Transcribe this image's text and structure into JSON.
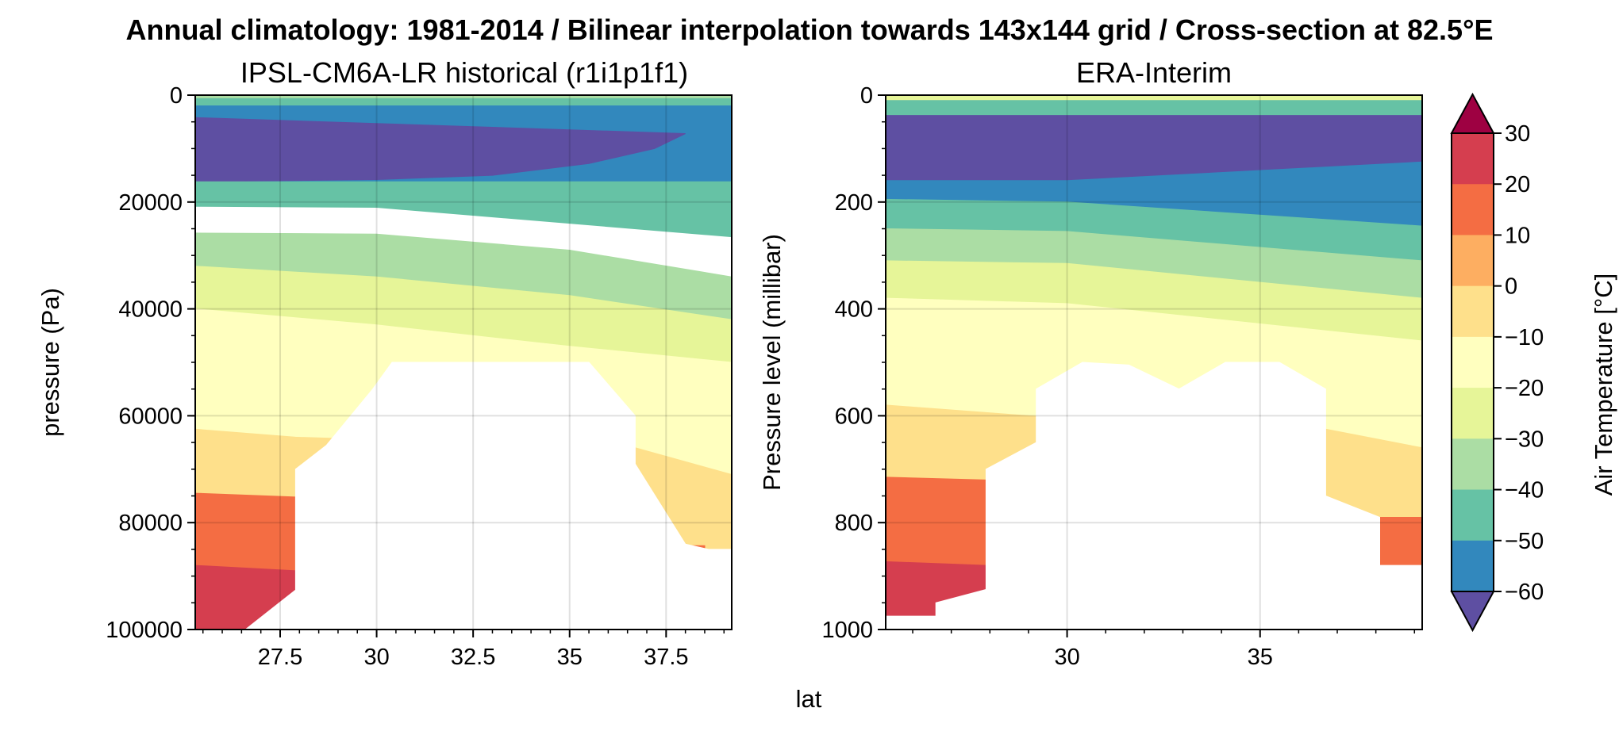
{
  "figure": {
    "suptitle": "Annual climatology: 1981-2014 / Bilinear interpolation towards 143x144 grid / Cross-section at 82.5°E",
    "shared_xlabel": "lat"
  },
  "colorbar": {
    "label": "Air Temperature [°C]",
    "tick_labels": [
      "30",
      "20",
      "10",
      "0",
      "−10",
      "−20",
      "−30",
      "−40",
      "−50",
      "−60"
    ],
    "bands_top_to_bottom": [
      "#d53e4f",
      "#f46d43",
      "#fdae61",
      "#fee08b",
      "#ffffbf",
      "#e6f598",
      "#abdda4",
      "#66c2a5",
      "#3288bd"
    ],
    "extend_high_color": "#9e0142",
    "extend_low_color": "#5e4fa2"
  },
  "chart_data": [
    {
      "type": "heatmap",
      "subtype": "filled-contour",
      "title": "IPSL-CM6A-LR historical (r1i1p1f1)",
      "ylabel": "pressure (Pa)",
      "xlabel": "lat",
      "xlim": [
        25.3,
        39.2
      ],
      "ylim": [
        100000,
        0
      ],
      "x_ticks": [
        27.5,
        30,
        32.5,
        35,
        37.5
      ],
      "x_tick_labels": [
        "27.5",
        "30",
        "32.5",
        "35",
        "37.5"
      ],
      "y_ticks": [
        0,
        20000,
        40000,
        60000,
        80000,
        100000
      ],
      "y_tick_labels": [
        "0",
        "20000",
        "40000",
        "60000",
        "80000",
        "100000"
      ],
      "levels": [
        -60,
        -50,
        -40,
        -30,
        -20,
        -10,
        0,
        10,
        20,
        30
      ],
      "grid": true,
      "filled_regions": [
        {
          "band": "surface layer -50 to -40 °C",
          "color": "#66c2a5",
          "points": [
            [
              25.3,
              0
            ],
            [
              39.2,
              0
            ],
            [
              39.2,
              2000
            ],
            [
              25.3,
              2000
            ]
          ]
        },
        {
          "band": "-30 to -20 °C",
          "color": "#abdda4",
          "points": [
            [
              25.3,
              0
            ],
            [
              39.2,
              0
            ],
            [
              39.2,
              500
            ],
            [
              25.3,
              500
            ]
          ]
        },
        {
          "band": "-60 to -50 °C",
          "color": "#3288bd",
          "points": [
            [
              25.3,
              2000
            ],
            [
              39.2,
              2000
            ],
            [
              39.2,
              16200
            ],
            [
              25.3,
              16200
            ]
          ]
        },
        {
          "band": "below -60 °C",
          "color": "#5e4fa2",
          "points": [
            [
              25.3,
              4200
            ],
            [
              38.0,
              7200
            ],
            [
              37.2,
              10000
            ],
            [
              35.5,
              12800
            ],
            [
              33.0,
              15000
            ],
            [
              30.0,
              15800
            ],
            [
              25.3,
              16200
            ]
          ]
        },
        {
          "band": "-50 to -40 °C",
          "color": "#66c2a5",
          "points": [
            [
              25.3,
              16200
            ],
            [
              39.2,
              16200
            ],
            [
              39.2,
              26500
            ],
            [
              30.0,
              21000
            ],
            [
              25.3,
              20800
            ]
          ]
        },
        {
          "band": "-40 to -30 °C",
          "color": "#abdda4",
          "points": [
            [
              25.3,
              25800
            ],
            [
              30.0,
              26000
            ],
            [
              35.0,
              29000
            ],
            [
              39.2,
              34000
            ],
            [
              39.2,
              42000
            ],
            [
              25.3,
              32000
            ]
          ]
        },
        {
          "band": "-30 to -20 °C",
          "color": "#e6f598",
          "points": [
            [
              25.3,
              32000
            ],
            [
              30.0,
              34000
            ],
            [
              35.0,
              37500
            ],
            [
              39.2,
              42000
            ],
            [
              39.2,
              50000
            ],
            [
              25.3,
              40000
            ]
          ]
        },
        {
          "band": "-20 to -10 °C",
          "color": "#ffffbf",
          "points": [
            [
              25.3,
              40000
            ],
            [
              30.0,
              43000
            ],
            [
              35.0,
              47000
            ],
            [
              39.2,
              50000
            ],
            [
              39.2,
              100000
            ],
            [
              25.3,
              100000
            ]
          ]
        },
        {
          "band": "-10 to 0 °C",
          "color": "#ffffbf",
          "points": [
            [
              25.3,
              50000
            ],
            [
              30.0,
              52000
            ],
            [
              35.0,
              55000
            ],
            [
              39.2,
              60000
            ],
            [
              39.2,
              100000
            ],
            [
              25.3,
              100000
            ]
          ]
        },
        {
          "band": "0 to 10 °C",
          "color": "#fee08b",
          "points": [
            [
              25.3,
              62500
            ],
            [
              27.9,
              64000
            ],
            [
              36.7,
              66000
            ],
            [
              39.2,
              71000
            ],
            [
              39.2,
              100000
            ],
            [
              25.3,
              100000
            ]
          ]
        },
        {
          "band": "10 to 20 °C",
          "color": "#f46d43",
          "points": [
            [
              25.3,
              74500
            ],
            [
              27.9,
              75200
            ],
            [
              27.9,
              100000
            ],
            [
              25.3,
              100000
            ]
          ]
        },
        {
          "band": "10 to 20 °C",
          "color": "#f46d43",
          "points": [
            [
              37.9,
              84300
            ],
            [
              38.5,
              84300
            ],
            [
              38.5,
              85100
            ],
            [
              37.9,
              85100
            ]
          ]
        },
        {
          "band": "20 to 30 °C",
          "color": "#d53e4f",
          "points": [
            [
              25.3,
              88000
            ],
            [
              27.9,
              89000
            ],
            [
              27.9,
              100000
            ],
            [
              25.3,
              100000
            ]
          ]
        }
      ],
      "masked_region": [
        [
          27.9,
          100000
        ],
        [
          27.9,
          70000
        ],
        [
          28.7,
          65500
        ],
        [
          29.9,
          55000
        ],
        [
          30.4,
          50000
        ],
        [
          35.5,
          50000
        ],
        [
          36.7,
          60000
        ],
        [
          36.7,
          69000
        ],
        [
          38.0,
          84000
        ],
        [
          38.6,
          85000
        ],
        [
          39.2,
          85000
        ],
        [
          39.2,
          100000
        ],
        [
          26.6,
          100000
        ],
        [
          27.9,
          92600
        ]
      ]
    },
    {
      "type": "heatmap",
      "subtype": "filled-contour",
      "title": "ERA-Interim",
      "ylabel": "Pressure level (millibar)",
      "xlabel": "lat",
      "xlim": [
        25.3,
        39.2
      ],
      "ylim": [
        1000,
        0
      ],
      "x_ticks": [
        30,
        35
      ],
      "x_tick_labels": [
        "30",
        "35"
      ],
      "y_ticks": [
        0,
        200,
        400,
        600,
        800,
        1000
      ],
      "y_tick_labels": [
        "0",
        "200",
        "400",
        "600",
        "800",
        "1000"
      ],
      "levels": [
        -60,
        -50,
        -40,
        -30,
        -20,
        -10,
        0,
        10,
        20,
        30
      ],
      "grid": true,
      "filled_regions": [
        {
          "band": "surface layer",
          "color": "#e6f598",
          "points": [
            [
              25.3,
              0
            ],
            [
              39.2,
              0
            ],
            [
              39.2,
              10
            ],
            [
              25.3,
              10
            ]
          ]
        },
        {
          "band": "-50 to -40 °C",
          "color": "#66c2a5",
          "points": [
            [
              25.3,
              10
            ],
            [
              39.2,
              10
            ],
            [
              39.2,
              38
            ],
            [
              25.3,
              38
            ]
          ]
        },
        {
          "band": "below -60 °C",
          "color": "#5e4fa2",
          "points": [
            [
              25.3,
              38
            ],
            [
              39.2,
              38
            ],
            [
              39.2,
              125
            ],
            [
              30.0,
              160
            ],
            [
              25.3,
              160
            ]
          ]
        },
        {
          "band": "-60 to -50 °C",
          "color": "#3288bd",
          "points": [
            [
              25.3,
              160
            ],
            [
              30.0,
              160
            ],
            [
              39.2,
              125
            ],
            [
              39.2,
              245
            ],
            [
              30.0,
              200
            ],
            [
              25.3,
              195
            ]
          ]
        },
        {
          "band": "-50 to -40 °C",
          "color": "#66c2a5",
          "points": [
            [
              25.3,
              195
            ],
            [
              30.0,
              200
            ],
            [
              39.2,
              245
            ],
            [
              39.2,
              310
            ],
            [
              30.0,
              255
            ],
            [
              25.3,
              250
            ]
          ]
        },
        {
          "band": "-40 to -30 °C",
          "color": "#abdda4",
          "points": [
            [
              25.3,
              250
            ],
            [
              30.0,
              255
            ],
            [
              39.2,
              310
            ],
            [
              39.2,
              380
            ],
            [
              30.0,
              315
            ],
            [
              25.3,
              310
            ]
          ]
        },
        {
          "band": "-30 to -20 °C",
          "color": "#e6f598",
          "points": [
            [
              25.3,
              310
            ],
            [
              30.0,
              315
            ],
            [
              39.2,
              380
            ],
            [
              39.2,
              460
            ],
            [
              30.0,
              390
            ],
            [
              25.3,
              380
            ]
          ]
        },
        {
          "band": "-20 to -10 °C",
          "color": "#ffffbf",
          "points": [
            [
              25.3,
              380
            ],
            [
              30.0,
              390
            ],
            [
              39.2,
              460
            ],
            [
              39.2,
              1000
            ],
            [
              25.3,
              1000
            ]
          ]
        },
        {
          "band": "-10 to 0 °C",
          "color": "#ffffbf",
          "points": [
            [
              25.3,
              470
            ],
            [
              30.0,
              490
            ],
            [
              39.2,
              560
            ],
            [
              39.2,
              1000
            ],
            [
              25.3,
              1000
            ]
          ]
        },
        {
          "band": "0 to 10 °C",
          "color": "#fee08b",
          "points": [
            [
              25.3,
              580
            ],
            [
              29.0,
              600
            ],
            [
              36.7,
              625
            ],
            [
              39.2,
              660
            ],
            [
              39.2,
              1000
            ],
            [
              25.3,
              1000
            ]
          ]
        },
        {
          "band": "10 to 20 °C",
          "color": "#f46d43",
          "points": [
            [
              25.3,
              715
            ],
            [
              27.9,
              720
            ],
            [
              27.9,
              1000
            ],
            [
              25.3,
              1000
            ]
          ]
        },
        {
          "band": "10 to 20 °C",
          "color": "#f46d43",
          "points": [
            [
              38.1,
              790
            ],
            [
              39.2,
              790
            ],
            [
              39.2,
              880
            ],
            [
              38.1,
              880
            ]
          ]
        },
        {
          "band": "20 to 30 °C",
          "color": "#d53e4f",
          "points": [
            [
              25.3,
              873
            ],
            [
              27.9,
              880
            ],
            [
              27.9,
              1000
            ],
            [
              25.3,
              1000
            ]
          ]
        }
      ],
      "masked_region": [
        [
          25.3,
          1000
        ],
        [
          25.3,
          975
        ],
        [
          26.6,
          975
        ],
        [
          26.6,
          950
        ],
        [
          27.9,
          925
        ],
        [
          27.9,
          700
        ],
        [
          29.2,
          650
        ],
        [
          29.2,
          550
        ],
        [
          30.4,
          500
        ],
        [
          31.6,
          505
        ],
        [
          32.9,
          550
        ],
        [
          34.1,
          500
        ],
        [
          35.5,
          500
        ],
        [
          36.7,
          550
        ],
        [
          36.7,
          750
        ],
        [
          38.1,
          790
        ],
        [
          38.1,
          880
        ],
        [
          39.2,
          880
        ],
        [
          39.2,
          1000
        ]
      ]
    }
  ]
}
